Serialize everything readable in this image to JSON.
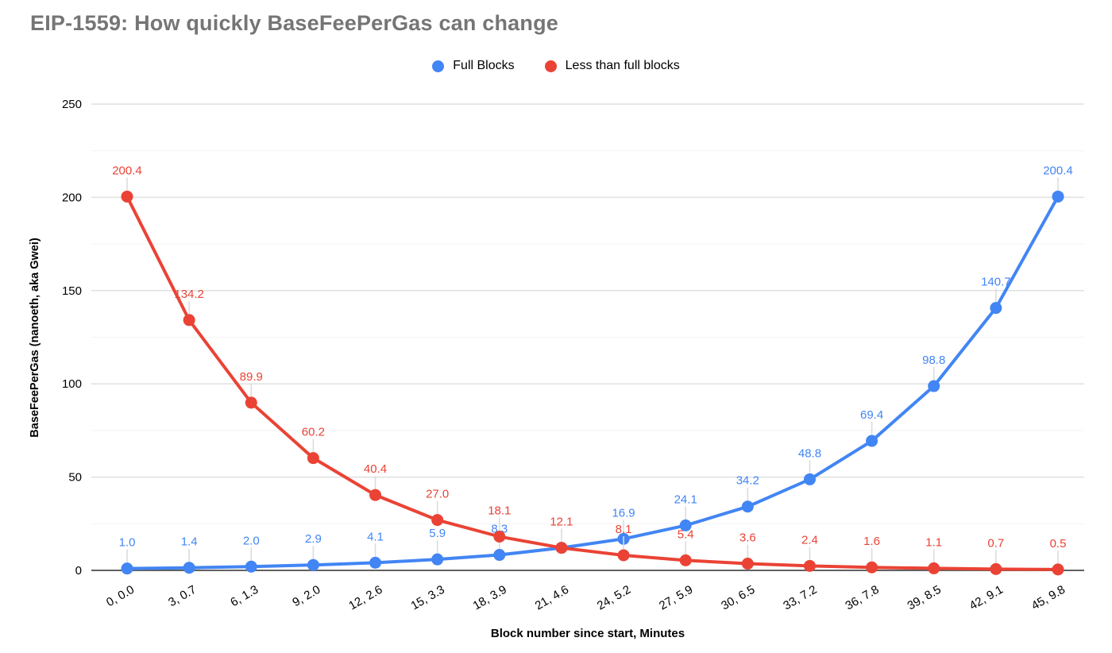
{
  "header": {
    "title": "EIP-1559: How quickly BaseFeePerGas can change",
    "title_color": "#757575"
  },
  "legend": [
    {
      "label": "Full Blocks",
      "color": "#4285F4"
    },
    {
      "label": "Less than full blocks",
      "color": "#EA4335"
    }
  ],
  "chart_data": {
    "type": "line",
    "title": "EIP-1559: How quickly BaseFeePerGas can change",
    "xlabel": "Block number since start, Minutes",
    "ylabel": "BaseFeePerGas (nanoeth, aka Gwei)",
    "categories": [
      "0, 0.0",
      "3, 0.7",
      "6, 1.3",
      "9, 2.0",
      "12, 2.6",
      "15, 3.3",
      "18, 3.9",
      "21, 4.6",
      "24, 5.2",
      "27, 5.9",
      "30, 6.5",
      "33, 7.2",
      "36, 7.8",
      "39, 8.5",
      "42, 9.1",
      "45, 9.8"
    ],
    "series": [
      {
        "name": "Full Blocks",
        "color": "#4285F4",
        "values": [
          1.0,
          1.4,
          2.0,
          2.9,
          4.1,
          5.9,
          8.3,
          12.1,
          16.9,
          24.1,
          34.2,
          48.8,
          69.4,
          98.8,
          140.7,
          200.4
        ],
        "point_labels": [
          "1.0",
          "1.4",
          "2.0",
          "2.9",
          "4.1",
          "5.9",
          "8.3",
          null,
          "16.9",
          "24.1",
          "34.2",
          "48.8",
          "69.4",
          "98.8",
          "140.7",
          "200.4"
        ]
      },
      {
        "name": "Less than full blocks",
        "color": "#EA4335",
        "values": [
          200.4,
          134.2,
          89.9,
          60.2,
          40.4,
          27.0,
          18.1,
          12.1,
          8.1,
          5.4,
          3.6,
          2.4,
          1.6,
          1.1,
          0.7,
          0.5
        ],
        "point_labels": [
          "200.4",
          "134.2",
          "89.9",
          "60.2",
          "40.4",
          "27.0",
          "18.1",
          "12.1",
          "8.1",
          "5.4",
          "3.6",
          "2.4",
          "1.6",
          "1.1",
          "0.7",
          "0.5"
        ]
      }
    ],
    "y_ticks": [
      0,
      50,
      100,
      150,
      200,
      250
    ],
    "ylim": [
      0,
      250
    ],
    "x_tick_rotation_deg": -30,
    "grid": {
      "major": true,
      "minor": true
    },
    "legend_position": "top",
    "colors": {
      "major_gridline": "#e0e0e0",
      "minor_gridline": "#f3f3f3",
      "axis_line": "#616161",
      "leader_line": "#dadce0",
      "tick_text": "#000000"
    }
  }
}
